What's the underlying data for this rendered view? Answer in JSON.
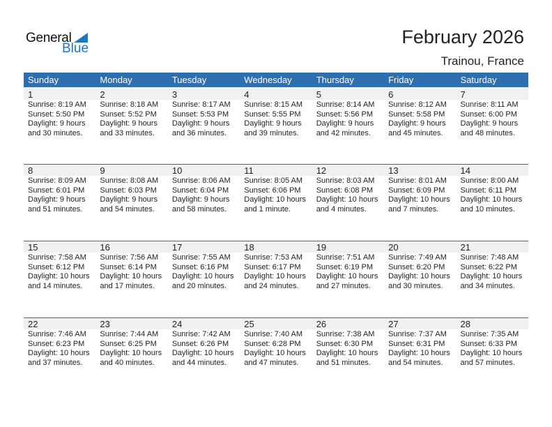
{
  "logo": {
    "text1": "General",
    "text2": "Blue"
  },
  "title": "February 2026",
  "location": "Trainou, France",
  "colors": {
    "header": "#2e6fb2",
    "brand": "#1d78c1"
  },
  "weekdays": [
    "Sunday",
    "Monday",
    "Tuesday",
    "Wednesday",
    "Thursday",
    "Friday",
    "Saturday"
  ],
  "weeks": [
    [
      {
        "day": "1",
        "sunrise": "Sunrise: 8:19 AM",
        "sunset": "Sunset: 5:50 PM",
        "d1": "Daylight: 9 hours",
        "d2": "and 30 minutes."
      },
      {
        "day": "2",
        "sunrise": "Sunrise: 8:18 AM",
        "sunset": "Sunset: 5:52 PM",
        "d1": "Daylight: 9 hours",
        "d2": "and 33 minutes."
      },
      {
        "day": "3",
        "sunrise": "Sunrise: 8:17 AM",
        "sunset": "Sunset: 5:53 PM",
        "d1": "Daylight: 9 hours",
        "d2": "and 36 minutes."
      },
      {
        "day": "4",
        "sunrise": "Sunrise: 8:15 AM",
        "sunset": "Sunset: 5:55 PM",
        "d1": "Daylight: 9 hours",
        "d2": "and 39 minutes."
      },
      {
        "day": "5",
        "sunrise": "Sunrise: 8:14 AM",
        "sunset": "Sunset: 5:56 PM",
        "d1": "Daylight: 9 hours",
        "d2": "and 42 minutes."
      },
      {
        "day": "6",
        "sunrise": "Sunrise: 8:12 AM",
        "sunset": "Sunset: 5:58 PM",
        "d1": "Daylight: 9 hours",
        "d2": "and 45 minutes."
      },
      {
        "day": "7",
        "sunrise": "Sunrise: 8:11 AM",
        "sunset": "Sunset: 6:00 PM",
        "d1": "Daylight: 9 hours",
        "d2": "and 48 minutes."
      }
    ],
    [
      {
        "day": "8",
        "sunrise": "Sunrise: 8:09 AM",
        "sunset": "Sunset: 6:01 PM",
        "d1": "Daylight: 9 hours",
        "d2": "and 51 minutes."
      },
      {
        "day": "9",
        "sunrise": "Sunrise: 8:08 AM",
        "sunset": "Sunset: 6:03 PM",
        "d1": "Daylight: 9 hours",
        "d2": "and 54 minutes."
      },
      {
        "day": "10",
        "sunrise": "Sunrise: 8:06 AM",
        "sunset": "Sunset: 6:04 PM",
        "d1": "Daylight: 9 hours",
        "d2": "and 58 minutes."
      },
      {
        "day": "11",
        "sunrise": "Sunrise: 8:05 AM",
        "sunset": "Sunset: 6:06 PM",
        "d1": "Daylight: 10 hours",
        "d2": "and 1 minute."
      },
      {
        "day": "12",
        "sunrise": "Sunrise: 8:03 AM",
        "sunset": "Sunset: 6:08 PM",
        "d1": "Daylight: 10 hours",
        "d2": "and 4 minutes."
      },
      {
        "day": "13",
        "sunrise": "Sunrise: 8:01 AM",
        "sunset": "Sunset: 6:09 PM",
        "d1": "Daylight: 10 hours",
        "d2": "and 7 minutes."
      },
      {
        "day": "14",
        "sunrise": "Sunrise: 8:00 AM",
        "sunset": "Sunset: 6:11 PM",
        "d1": "Daylight: 10 hours",
        "d2": "and 10 minutes."
      }
    ],
    [
      {
        "day": "15",
        "sunrise": "Sunrise: 7:58 AM",
        "sunset": "Sunset: 6:12 PM",
        "d1": "Daylight: 10 hours",
        "d2": "and 14 minutes."
      },
      {
        "day": "16",
        "sunrise": "Sunrise: 7:56 AM",
        "sunset": "Sunset: 6:14 PM",
        "d1": "Daylight: 10 hours",
        "d2": "and 17 minutes."
      },
      {
        "day": "17",
        "sunrise": "Sunrise: 7:55 AM",
        "sunset": "Sunset: 6:16 PM",
        "d1": "Daylight: 10 hours",
        "d2": "and 20 minutes."
      },
      {
        "day": "18",
        "sunrise": "Sunrise: 7:53 AM",
        "sunset": "Sunset: 6:17 PM",
        "d1": "Daylight: 10 hours",
        "d2": "and 24 minutes."
      },
      {
        "day": "19",
        "sunrise": "Sunrise: 7:51 AM",
        "sunset": "Sunset: 6:19 PM",
        "d1": "Daylight: 10 hours",
        "d2": "and 27 minutes."
      },
      {
        "day": "20",
        "sunrise": "Sunrise: 7:49 AM",
        "sunset": "Sunset: 6:20 PM",
        "d1": "Daylight: 10 hours",
        "d2": "and 30 minutes."
      },
      {
        "day": "21",
        "sunrise": "Sunrise: 7:48 AM",
        "sunset": "Sunset: 6:22 PM",
        "d1": "Daylight: 10 hours",
        "d2": "and 34 minutes."
      }
    ],
    [
      {
        "day": "22",
        "sunrise": "Sunrise: 7:46 AM",
        "sunset": "Sunset: 6:23 PM",
        "d1": "Daylight: 10 hours",
        "d2": "and 37 minutes."
      },
      {
        "day": "23",
        "sunrise": "Sunrise: 7:44 AM",
        "sunset": "Sunset: 6:25 PM",
        "d1": "Daylight: 10 hours",
        "d2": "and 40 minutes."
      },
      {
        "day": "24",
        "sunrise": "Sunrise: 7:42 AM",
        "sunset": "Sunset: 6:26 PM",
        "d1": "Daylight: 10 hours",
        "d2": "and 44 minutes."
      },
      {
        "day": "25",
        "sunrise": "Sunrise: 7:40 AM",
        "sunset": "Sunset: 6:28 PM",
        "d1": "Daylight: 10 hours",
        "d2": "and 47 minutes."
      },
      {
        "day": "26",
        "sunrise": "Sunrise: 7:38 AM",
        "sunset": "Sunset: 6:30 PM",
        "d1": "Daylight: 10 hours",
        "d2": "and 51 minutes."
      },
      {
        "day": "27",
        "sunrise": "Sunrise: 7:37 AM",
        "sunset": "Sunset: 6:31 PM",
        "d1": "Daylight: 10 hours",
        "d2": "and 54 minutes."
      },
      {
        "day": "28",
        "sunrise": "Sunrise: 7:35 AM",
        "sunset": "Sunset: 6:33 PM",
        "d1": "Daylight: 10 hours",
        "d2": "and 57 minutes."
      }
    ]
  ]
}
